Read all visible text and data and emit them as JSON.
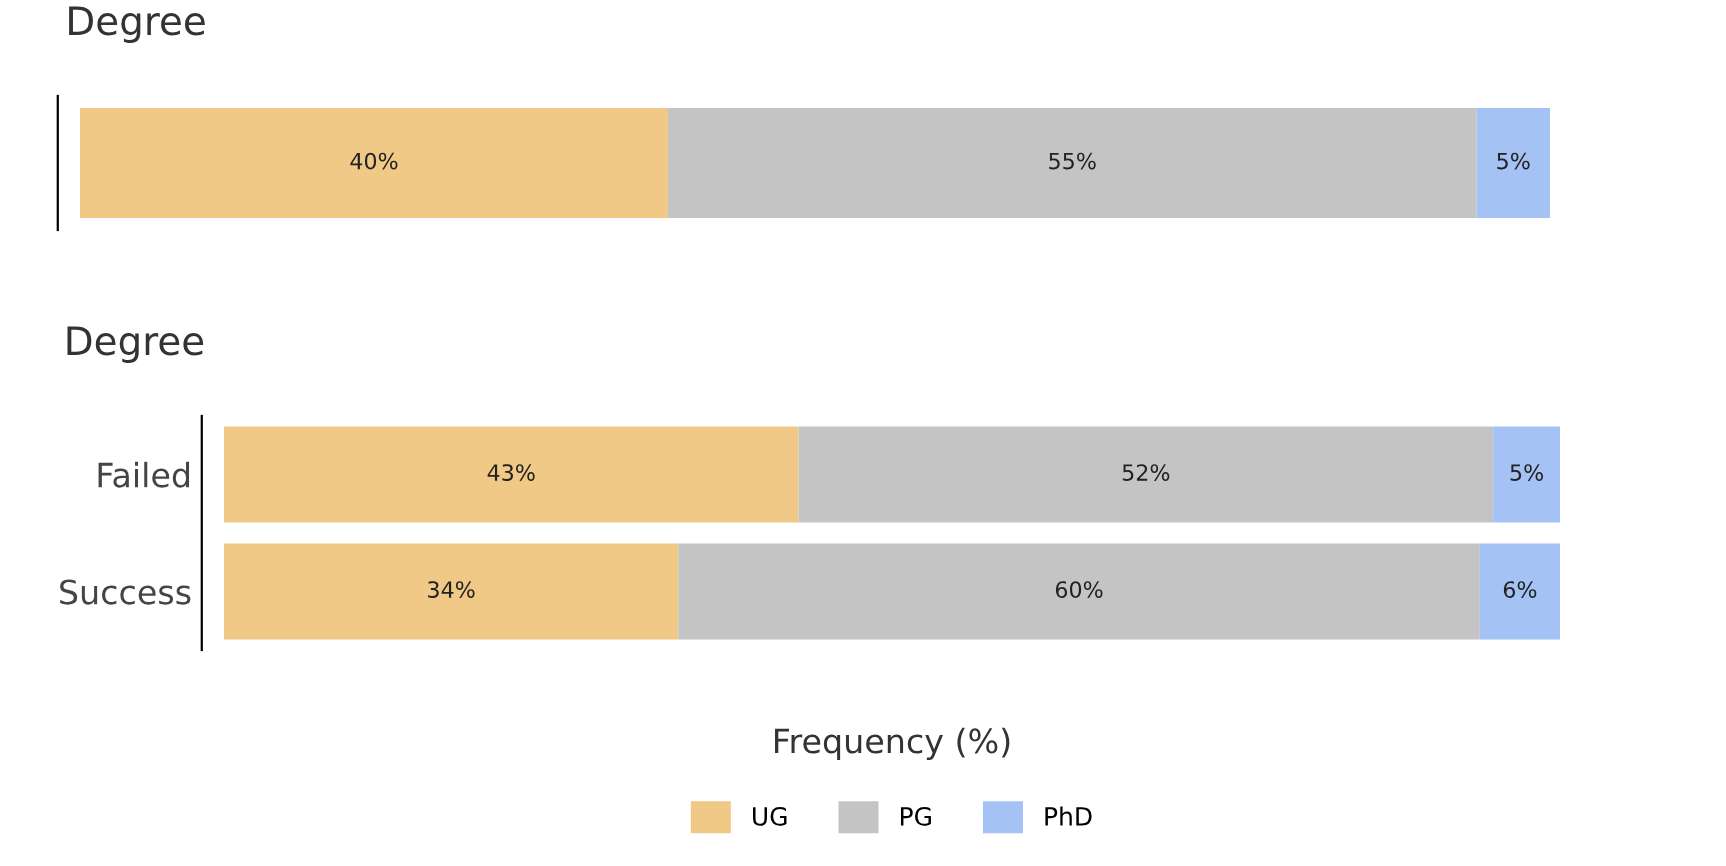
{
  "chart_data": [
    {
      "type": "bar",
      "title": "Degree",
      "orientation": "horizontal",
      "stacked": true,
      "categories": [
        null
      ],
      "xlim": [
        0,
        100
      ],
      "tick_labels": false,
      "grid": false,
      "legend": false,
      "series": [
        {
          "color": "#f0c987",
          "values": [
            40
          ],
          "value_labels": [
            "40%"
          ]
        },
        {
          "color": "#c4c4c4",
          "values": [
            55
          ],
          "value_labels": [
            "55%"
          ]
        },
        {
          "color": "#a4c2f4",
          "values": [
            5
          ],
          "value_labels": [
            "5%"
          ]
        }
      ]
    },
    {
      "type": "bar",
      "title": "Degree",
      "xlabel": "Frequency (%)",
      "orientation": "horizontal",
      "stacked": true,
      "categories": [
        "Failed",
        "Success"
      ],
      "xlim": [
        0,
        100
      ],
      "tick_labels": "y",
      "grid": false,
      "legend": "bottom",
      "series": [
        {
          "name": "UG",
          "color": "#f0c987",
          "values": [
            43,
            34
          ],
          "value_labels": [
            "43%",
            "34%"
          ]
        },
        {
          "name": "PG",
          "color": "#c4c4c4",
          "values": [
            52,
            60
          ],
          "value_labels": [
            "52%",
            "60%"
          ]
        },
        {
          "name": "PhD",
          "color": "#a4c2f4",
          "values": [
            5,
            6
          ],
          "value_labels": [
            "5%",
            "6%"
          ]
        }
      ]
    }
  ]
}
